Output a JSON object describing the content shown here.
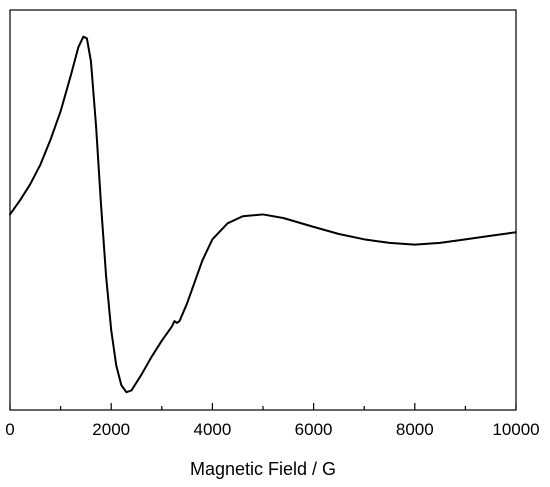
{
  "chart_data": {
    "type": "line",
    "title": "",
    "xlabel": "Magnetic Field / G",
    "ylabel": "",
    "xlim": [
      0,
      10000
    ],
    "ylim": [
      -1.1,
      1.15
    ],
    "x_ticks": [
      0,
      2000,
      4000,
      6000,
      8000,
      10000
    ],
    "x_tick_labels": [
      "0",
      "2000",
      "4000",
      "6000",
      "8000",
      "10000"
    ],
    "y_ticks_shown": false,
    "grid": false,
    "legend": "none",
    "line_color": "#000000",
    "series": [
      {
        "values": [
          [
            0,
            0.0
          ],
          [
            200,
            0.08
          ],
          [
            400,
            0.17
          ],
          [
            600,
            0.28
          ],
          [
            800,
            0.42
          ],
          [
            1000,
            0.58
          ],
          [
            1200,
            0.78
          ],
          [
            1350,
            0.94
          ],
          [
            1450,
            1.0
          ],
          [
            1520,
            0.99
          ],
          [
            1600,
            0.86
          ],
          [
            1700,
            0.5
          ],
          [
            1800,
            0.05
          ],
          [
            1900,
            -0.35
          ],
          [
            2000,
            -0.65
          ],
          [
            2100,
            -0.85
          ],
          [
            2200,
            -0.96
          ],
          [
            2300,
            -1.0
          ],
          [
            2400,
            -0.99
          ],
          [
            2600,
            -0.9
          ],
          [
            2800,
            -0.8
          ],
          [
            3000,
            -0.71
          ],
          [
            3200,
            -0.63
          ],
          [
            3250,
            -0.6
          ],
          [
            3300,
            -0.61
          ],
          [
            3350,
            -0.6
          ],
          [
            3500,
            -0.5
          ],
          [
            3800,
            -0.26
          ],
          [
            4000,
            -0.14
          ],
          [
            4300,
            -0.05
          ],
          [
            4600,
            -0.01
          ],
          [
            5000,
            0.0
          ],
          [
            5400,
            -0.02
          ],
          [
            6000,
            -0.07
          ],
          [
            6500,
            -0.11
          ],
          [
            7000,
            -0.14
          ],
          [
            7500,
            -0.16
          ],
          [
            8000,
            -0.17
          ],
          [
            8500,
            -0.16
          ],
          [
            9000,
            -0.14
          ],
          [
            9500,
            -0.12
          ],
          [
            10000,
            -0.1
          ]
        ]
      }
    ]
  }
}
